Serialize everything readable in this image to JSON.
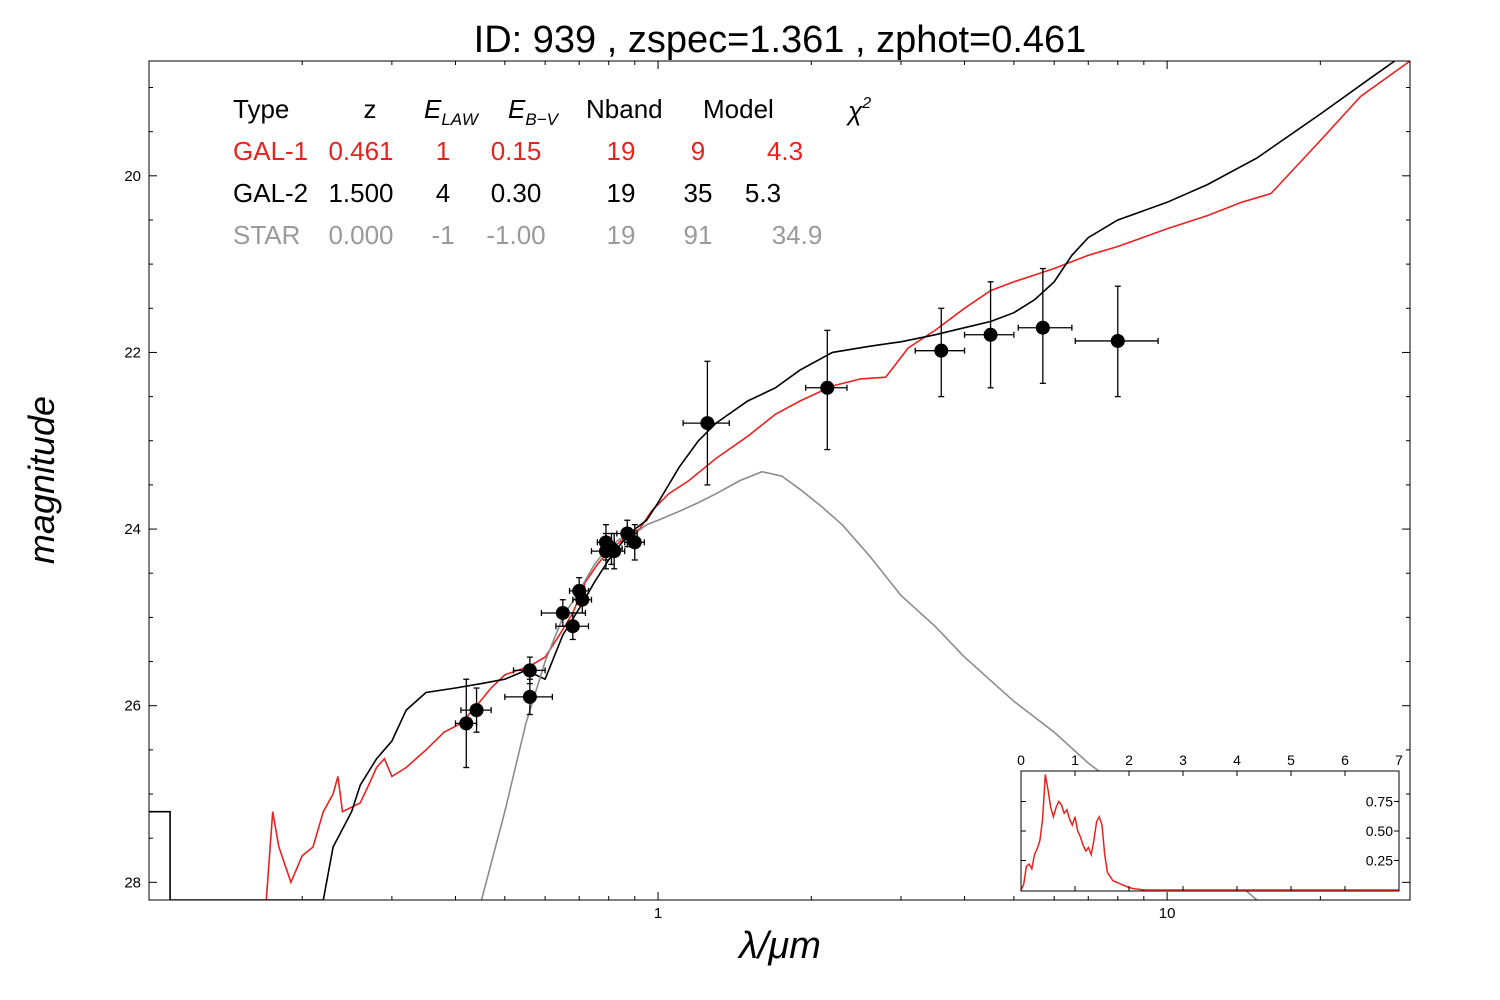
{
  "chart_data": [
    {
      "type": "scatter",
      "title": "ID:  939   , zspec=1.361 , zphot=0.461",
      "xlabel": "λ/μm",
      "ylabel": "magnitude",
      "x_scale": "log",
      "xlim": [
        0.1,
        30
      ],
      "ylim": [
        28.2,
        18.7
      ],
      "y_inverted": true,
      "grid": false,
      "x_ticks": [
        {
          "value": 1,
          "label": "1"
        },
        {
          "value": 10,
          "label": "10"
        }
      ],
      "y_ticks": [
        {
          "value": 20,
          "label": "20"
        },
        {
          "value": 22,
          "label": "22"
        },
        {
          "value": 24,
          "label": "24"
        },
        {
          "value": 26,
          "label": "26"
        },
        {
          "value": 28,
          "label": "28"
        }
      ],
      "table": {
        "headers": {
          "type": "Type",
          "z": "z",
          "elaw": "E",
          "elaw_sub": "LAW",
          "ebv": "E",
          "ebv_sub": "B−V",
          "nband": "Nband",
          "model": "Model",
          "chi": "χ",
          "chi_sup": "2"
        },
        "rows": [
          {
            "type": "GAL-1",
            "z": "0.461",
            "elaw": "1",
            "ebv": "0.15",
            "nband": "19",
            "model": "9",
            "chi2": "4.3",
            "color": "#e8231f"
          },
          {
            "type": "GAL-2",
            "z": "1.500",
            "elaw": "4",
            "ebv": "0.30",
            "nband": "19",
            "model": "35",
            "chi2": "5.3",
            "color": "#000000"
          },
          {
            "type": "STAR",
            "z": "0.000",
            "elaw": "-1",
            "ebv": "-1.00",
            "nband": "19",
            "model": "91",
            "chi2": "34.9",
            "color": "#9a9a9a"
          }
        ]
      },
      "series": [
        {
          "color": "#000000",
          "marker": "circle",
          "style": "points-with-errorbars",
          "points": [
            {
              "x": 0.42,
              "y": 26.2,
              "xerr": [
                0.4,
                0.44
              ],
              "yerr": [
                25.7,
                26.7
              ]
            },
            {
              "x": 0.44,
              "y": 26.05,
              "xerr": [
                0.41,
                0.47
              ],
              "yerr": [
                25.8,
                26.3
              ]
            },
            {
              "x": 0.56,
              "y": 25.6,
              "xerr": [
                0.52,
                0.6
              ],
              "yerr": [
                25.45,
                25.75
              ]
            },
            {
              "x": 0.56,
              "y": 25.9,
              "xerr": [
                0.5,
                0.62
              ],
              "yerr": [
                25.7,
                26.1
              ]
            },
            {
              "x": 0.65,
              "y": 24.95,
              "xerr": [
                0.59,
                0.72
              ],
              "yerr": [
                24.8,
                25.1
              ]
            },
            {
              "x": 0.68,
              "y": 25.1,
              "xerr": [
                0.63,
                0.73
              ],
              "yerr": [
                24.95,
                25.25
              ]
            },
            {
              "x": 0.7,
              "y": 24.7,
              "xerr": [
                0.67,
                0.73
              ],
              "yerr": [
                24.55,
                24.85
              ]
            },
            {
              "x": 0.71,
              "y": 24.8,
              "xerr": [
                0.68,
                0.74
              ],
              "yerr": [
                24.65,
                24.95
              ]
            },
            {
              "x": 0.79,
              "y": 24.15,
              "xerr": [
                0.76,
                0.82
              ],
              "yerr": [
                23.95,
                24.35
              ]
            },
            {
              "x": 0.79,
              "y": 24.25,
              "xerr": [
                0.74,
                0.84
              ],
              "yerr": [
                24.05,
                24.45
              ]
            },
            {
              "x": 0.81,
              "y": 24.22,
              "xerr": [
                0.78,
                0.85
              ],
              "yerr": [
                24.05,
                24.4
              ]
            },
            {
              "x": 0.82,
              "y": 24.25,
              "xerr": [
                0.79,
                0.86
              ],
              "yerr": [
                24.05,
                24.45
              ]
            },
            {
              "x": 0.87,
              "y": 24.05,
              "xerr": [
                0.83,
                0.91
              ],
              "yerr": [
                23.9,
                24.2
              ]
            },
            {
              "x": 0.9,
              "y": 24.15,
              "xerr": [
                0.86,
                0.94
              ],
              "yerr": [
                23.95,
                24.35
              ]
            },
            {
              "x": 1.25,
              "y": 22.8,
              "xerr": [
                1.12,
                1.38
              ],
              "yerr": [
                22.1,
                23.5
              ]
            },
            {
              "x": 2.15,
              "y": 22.4,
              "xerr": [
                1.95,
                2.35
              ],
              "yerr": [
                21.75,
                23.1
              ]
            },
            {
              "x": 3.6,
              "y": 21.98,
              "xerr": [
                3.2,
                4.0
              ],
              "yerr": [
                21.5,
                22.5
              ]
            },
            {
              "x": 4.5,
              "y": 21.8,
              "xerr": [
                4.0,
                5.0
              ],
              "yerr": [
                21.2,
                22.4
              ]
            },
            {
              "x": 5.7,
              "y": 21.72,
              "xerr": [
                5.1,
                6.5
              ],
              "yerr": [
                21.05,
                22.35
              ]
            },
            {
              "x": 8.0,
              "y": 21.87,
              "xerr": [
                6.6,
                9.6
              ],
              "yerr": [
                21.25,
                22.5
              ]
            }
          ]
        },
        {
          "color": "#e8231f",
          "style": "line",
          "points": [
            [
              0.17,
              28.2
            ],
            [
              0.175,
              27.2
            ],
            [
              0.18,
              27.6
            ],
            [
              0.19,
              28.0
            ],
            [
              0.2,
              27.7
            ],
            [
              0.21,
              27.6
            ],
            [
              0.22,
              27.2
            ],
            [
              0.23,
              27.0
            ],
            [
              0.235,
              26.8
            ],
            [
              0.24,
              27.2
            ],
            [
              0.26,
              27.1
            ],
            [
              0.27,
              26.9
            ],
            [
              0.28,
              26.7
            ],
            [
              0.29,
              26.6
            ],
            [
              0.3,
              26.8
            ],
            [
              0.32,
              26.7
            ],
            [
              0.35,
              26.5
            ],
            [
              0.38,
              26.3
            ],
            [
              0.41,
              26.2
            ],
            [
              0.44,
              26.0
            ],
            [
              0.47,
              25.8
            ],
            [
              0.5,
              25.65
            ],
            [
              0.53,
              25.6
            ],
            [
              0.56,
              25.55
            ],
            [
              0.6,
              25.45
            ],
            [
              0.64,
              25.2
            ],
            [
              0.68,
              24.95
            ],
            [
              0.72,
              24.6
            ],
            [
              0.76,
              24.4
            ],
            [
              0.8,
              24.25
            ],
            [
              0.84,
              24.15
            ],
            [
              0.88,
              24.05
            ],
            [
              0.92,
              24.0
            ],
            [
              0.97,
              23.8
            ],
            [
              1.05,
              23.6
            ],
            [
              1.15,
              23.45
            ],
            [
              1.3,
              23.2
            ],
            [
              1.5,
              22.95
            ],
            [
              1.7,
              22.7
            ],
            [
              1.9,
              22.55
            ],
            [
              2.2,
              22.38
            ],
            [
              2.5,
              22.3
            ],
            [
              2.8,
              22.28
            ],
            [
              3.1,
              21.95
            ],
            [
              3.5,
              21.75
            ],
            [
              4.0,
              21.5
            ],
            [
              4.5,
              21.3
            ],
            [
              5.0,
              21.2
            ],
            [
              6.0,
              21.05
            ],
            [
              7.0,
              20.9
            ],
            [
              8.0,
              20.8
            ],
            [
              10.0,
              20.6
            ],
            [
              12.0,
              20.45
            ],
            [
              14.0,
              20.3
            ],
            [
              16.0,
              20.2
            ],
            [
              20.0,
              19.6
            ],
            [
              24.0,
              19.1
            ],
            [
              30.0,
              18.7
            ]
          ]
        },
        {
          "color": "#000000",
          "style": "line",
          "points": [
            [
              0.1,
              27.2
            ],
            [
              0.11,
              27.2
            ],
            [
              0.11,
              28.2
            ],
            [
              0.22,
              28.2
            ],
            [
              0.23,
              27.6
            ],
            [
              0.25,
              27.2
            ],
            [
              0.26,
              26.9
            ],
            [
              0.28,
              26.6
            ],
            [
              0.3,
              26.4
            ],
            [
              0.32,
              26.05
            ],
            [
              0.35,
              25.85
            ],
            [
              0.4,
              25.8
            ],
            [
              0.45,
              25.75
            ],
            [
              0.5,
              25.7
            ],
            [
              0.55,
              25.6
            ],
            [
              0.6,
              25.7
            ],
            [
              0.65,
              25.2
            ],
            [
              0.7,
              24.9
            ],
            [
              0.75,
              24.6
            ],
            [
              0.8,
              24.35
            ],
            [
              0.85,
              24.15
            ],
            [
              0.9,
              24.0
            ],
            [
              0.95,
              23.9
            ],
            [
              1.0,
              23.7
            ],
            [
              1.1,
              23.3
            ],
            [
              1.2,
              23.0
            ],
            [
              1.3,
              22.8
            ],
            [
              1.5,
              22.55
            ],
            [
              1.7,
              22.4
            ],
            [
              1.9,
              22.2
            ],
            [
              2.2,
              22.0
            ],
            [
              2.6,
              21.93
            ],
            [
              3.0,
              21.88
            ],
            [
              3.5,
              21.8
            ],
            [
              4.0,
              21.72
            ],
            [
              4.5,
              21.65
            ],
            [
              5.0,
              21.55
            ],
            [
              5.5,
              21.4
            ],
            [
              6.0,
              21.2
            ],
            [
              6.5,
              20.9
            ],
            [
              7.0,
              20.7
            ],
            [
              8.0,
              20.5
            ],
            [
              10.0,
              20.3
            ],
            [
              12.0,
              20.1
            ],
            [
              15.0,
              19.8
            ],
            [
              20.0,
              19.3
            ],
            [
              25.0,
              18.9
            ],
            [
              28.0,
              18.7
            ]
          ]
        },
        {
          "color": "#8c8c8c",
          "style": "line",
          "points": [
            [
              0.45,
              28.2
            ],
            [
              0.5,
              27.2
            ],
            [
              0.55,
              26.2
            ],
            [
              0.6,
              25.5
            ],
            [
              0.65,
              25.0
            ],
            [
              0.7,
              24.7
            ],
            [
              0.75,
              24.4
            ],
            [
              0.8,
              24.2
            ],
            [
              0.85,
              24.1
            ],
            [
              0.9,
              24.05
            ],
            [
              0.95,
              23.95
            ],
            [
              1.0,
              23.9
            ],
            [
              1.1,
              23.8
            ],
            [
              1.2,
              23.7
            ],
            [
              1.3,
              23.6
            ],
            [
              1.45,
              23.45
            ],
            [
              1.6,
              23.35
            ],
            [
              1.75,
              23.4
            ],
            [
              1.9,
              23.55
            ],
            [
              2.1,
              23.75
            ],
            [
              2.3,
              23.95
            ],
            [
              2.6,
              24.3
            ],
            [
              3.0,
              24.75
            ],
            [
              3.5,
              25.1
            ],
            [
              4.0,
              25.45
            ],
            [
              5.0,
              25.95
            ],
            [
              6.0,
              26.3
            ],
            [
              7.0,
              26.65
            ],
            [
              8.0,
              26.9
            ],
            [
              10.0,
              27.35
            ],
            [
              12.0,
              27.7
            ],
            [
              14.0,
              28.05
            ],
            [
              15.0,
              28.2
            ]
          ]
        }
      ]
    },
    {
      "type": "line",
      "x_ticks": [
        "0",
        "1",
        "2",
        "3",
        "4",
        "5",
        "6",
        "7"
      ],
      "y_ticks": [
        "0.25",
        "0.50",
        "0.75"
      ],
      "xlim": [
        0,
        7
      ],
      "ylim": [
        0,
        1.0
      ],
      "series": [
        {
          "color": "#e8231f",
          "points": [
            [
              0,
              0
            ],
            [
              0.05,
              0.05
            ],
            [
              0.1,
              0.2
            ],
            [
              0.15,
              0.22
            ],
            [
              0.2,
              0.18
            ],
            [
              0.25,
              0.3
            ],
            [
              0.3,
              0.35
            ],
            [
              0.35,
              0.42
            ],
            [
              0.4,
              0.6
            ],
            [
              0.45,
              0.98
            ],
            [
              0.5,
              0.85
            ],
            [
              0.55,
              0.7
            ],
            [
              0.6,
              0.62
            ],
            [
              0.65,
              0.7
            ],
            [
              0.7,
              0.75
            ],
            [
              0.75,
              0.72
            ],
            [
              0.8,
              0.65
            ],
            [
              0.85,
              0.68
            ],
            [
              0.9,
              0.6
            ],
            [
              0.95,
              0.55
            ],
            [
              1.0,
              0.62
            ],
            [
              1.05,
              0.5
            ],
            [
              1.1,
              0.45
            ],
            [
              1.15,
              0.38
            ],
            [
              1.2,
              0.33
            ],
            [
              1.25,
              0.36
            ],
            [
              1.3,
              0.3
            ],
            [
              1.35,
              0.42
            ],
            [
              1.4,
              0.58
            ],
            [
              1.45,
              0.62
            ],
            [
              1.5,
              0.55
            ],
            [
              1.55,
              0.3
            ],
            [
              1.6,
              0.15
            ],
            [
              1.7,
              0.08
            ],
            [
              1.8,
              0.06
            ],
            [
              1.9,
              0.04
            ],
            [
              2.0,
              0.02
            ],
            [
              2.1,
              0.01
            ],
            [
              2.3,
              0.0
            ],
            [
              7.0,
              0.0
            ]
          ]
        }
      ]
    }
  ]
}
